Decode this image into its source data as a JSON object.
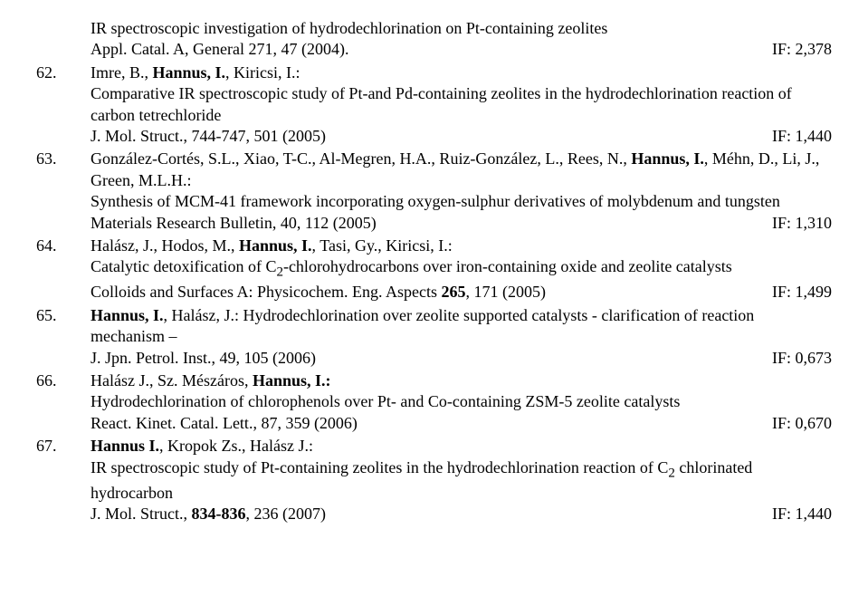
{
  "entries": [
    {
      "num": "",
      "lines": [
        {
          "text": "IR spectroscopic investigation of hydrodechlorination on Pt-containing zeolites"
        },
        {
          "left": "Appl. Catal. A, General 271, 47 (2004).",
          "right": "IF: 2,378"
        }
      ]
    },
    {
      "num": "62.",
      "lines": [
        {
          "html": "Imre, B., <b>Hannus, I.</b>, Kiricsi, I.:"
        },
        {
          "text": "Comparative IR spectroscopic study of Pt-and Pd-containing zeolites in the hydrodechlorination reaction of carbon tetrechloride"
        },
        {
          "left": "J. Mol. Struct., 744-747, 501 (2005)",
          "right": "IF: 1,440"
        }
      ]
    },
    {
      "num": "63.",
      "lines": [
        {
          "html": "González-Cortés, S.L., Xiao, T-C., Al-Megren, H.A., Ruiz-González, L., Rees, N., <b>Hannus, I.</b>, Méhn, D., Li, J., Green, M.L.H.:"
        },
        {
          "text": "Synthesis of MCM-41 framework incorporating oxygen-sulphur derivatives of molybdenum and tungsten"
        },
        {
          "left": "Materials Research Bulletin, 40, 112 (2005)",
          "right": "IF: 1,310"
        }
      ]
    },
    {
      "num": "64.",
      "lines": [
        {
          "html": "Halász, J., Hodos, M., <b>Hannus, I.</b>, Tasi, Gy., Kiricsi, I.:"
        },
        {
          "html": "Catalytic detoxification of C<sub>2</sub>-chlorohydrocarbons over iron-containing oxide and zeolite catalysts"
        },
        {
          "left": "Colloids and Surfaces A: Physicochem. Eng. Aspects <b>265</b>, 171 (2005)",
          "leftHtml": true,
          "right": "IF: 1,499"
        }
      ]
    },
    {
      "num": "65.",
      "lines": [
        {
          "html": "<b>Hannus, I.</b>, Halász, J.: Hydrodechlorination over zeolite supported catalysts - clarification of reaction mechanism –"
        },
        {
          "left": "J. Jpn. Petrol. Inst., 49, 105 (2006)",
          "right": "IF: 0,673"
        }
      ]
    },
    {
      "num": "66.",
      "lines": [
        {
          "html": "Halász J., Sz. Mészáros, <b>Hannus, I.:</b>"
        },
        {
          "text": "Hydrodechlorination of chlorophenols over Pt- and Co-containing ZSM-5 zeolite catalysts"
        },
        {
          "left": "React. Kinet. Catal. Lett., 87, 359 (2006)",
          "right": "IF: 0,670"
        }
      ]
    },
    {
      "num": "67.",
      "lines": [
        {
          "html": "<b>Hannus I.</b>, Kropok Zs., Halász J.:"
        },
        {
          "html": "IR spectroscopic study of Pt-containing zeolites in the hydrodechlorination reaction of C<sub>2</sub> chlorinated hydrocarbon"
        },
        {
          "left": "J. Mol. Struct., <b>834-836</b>, 236 (2007)",
          "leftHtml": true,
          "right": "IF: 1,440"
        }
      ]
    }
  ]
}
